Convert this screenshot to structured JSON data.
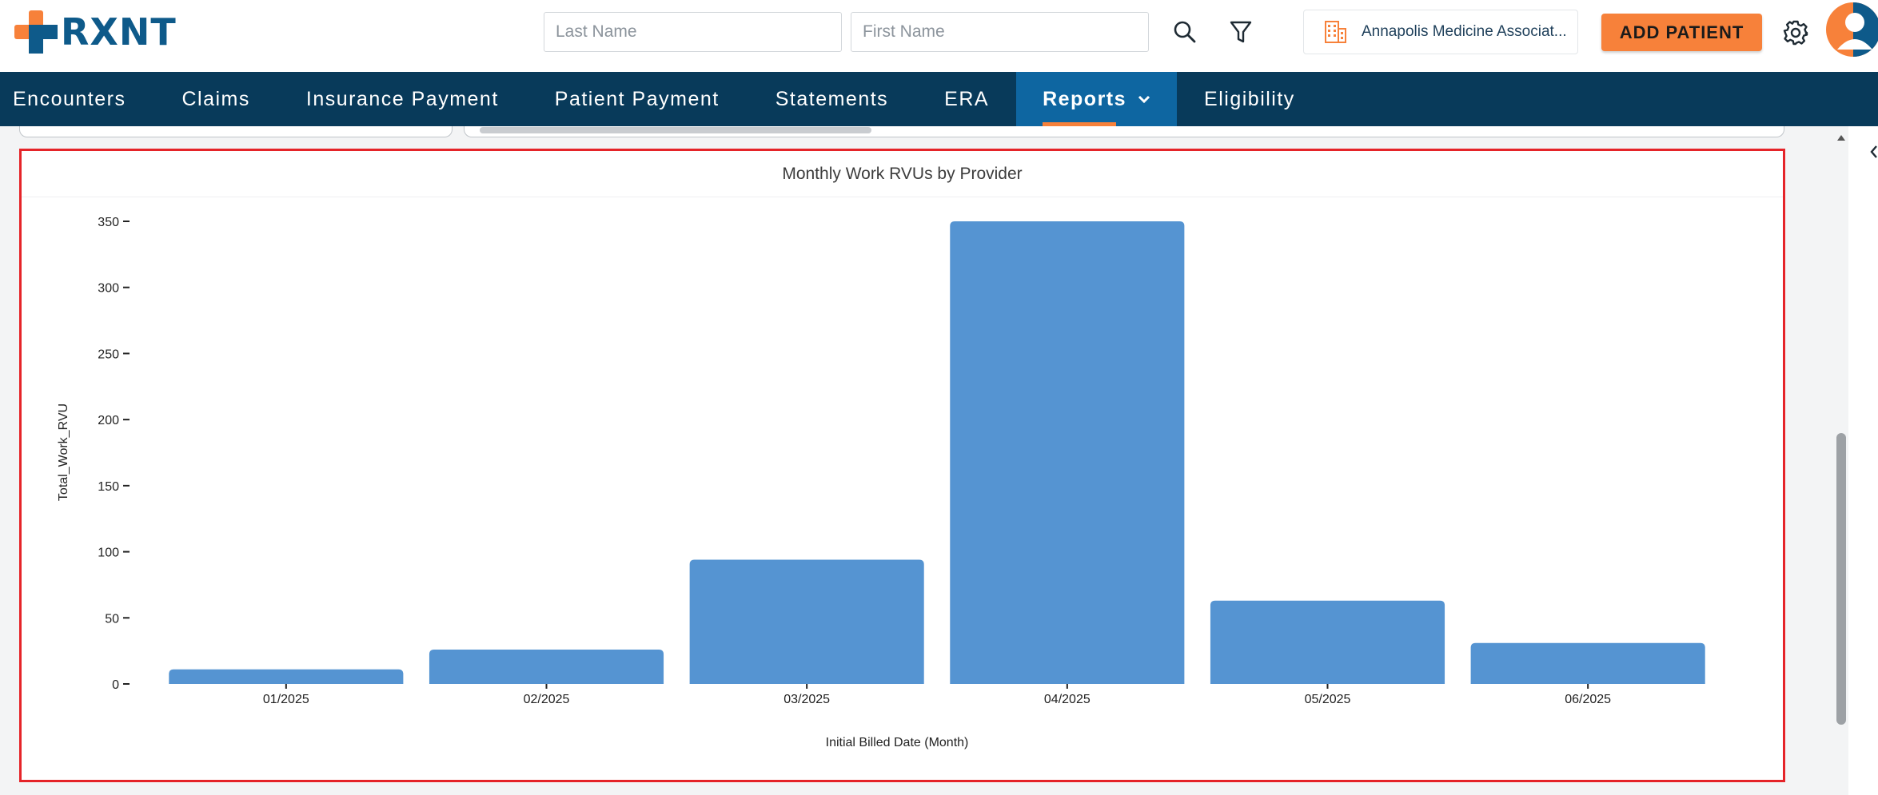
{
  "header": {
    "logo_text": "RXNT",
    "last_name_placeholder": "Last Name",
    "first_name_placeholder": "First Name",
    "practice_name": "Annapolis Medicine Associat...",
    "add_patient_label": "ADD PATIENT",
    "accent": "#f7813a",
    "brand": "#0e5a8a"
  },
  "nav": {
    "items": [
      {
        "label": "Encounters"
      },
      {
        "label": "Claims"
      },
      {
        "label": "Insurance Payment"
      },
      {
        "label": "Patient Payment"
      },
      {
        "label": "Statements"
      },
      {
        "label": "ERA"
      },
      {
        "label": "Reports",
        "active": true
      },
      {
        "label": "Eligibility"
      }
    ],
    "background": "#083a5a",
    "active_background": "#0e66a1"
  },
  "chart": {
    "title": "Monthly Work RVUs by Provider"
  },
  "chart_data": {
    "type": "bar",
    "title": "Monthly Work RVUs by Provider",
    "xlabel": "Initial Billed Date (Month)",
    "ylabel": "Total_Work_RVU",
    "categories": [
      "01/2025",
      "02/2025",
      "03/2025",
      "04/2025",
      "05/2025",
      "06/2025"
    ],
    "values": [
      11,
      26,
      94,
      350,
      63,
      31
    ],
    "ylim": [
      0,
      350
    ],
    "yticks": [
      0,
      50,
      100,
      150,
      200,
      250,
      300,
      350
    ],
    "grid": false,
    "bar_color": "#5594d2"
  }
}
